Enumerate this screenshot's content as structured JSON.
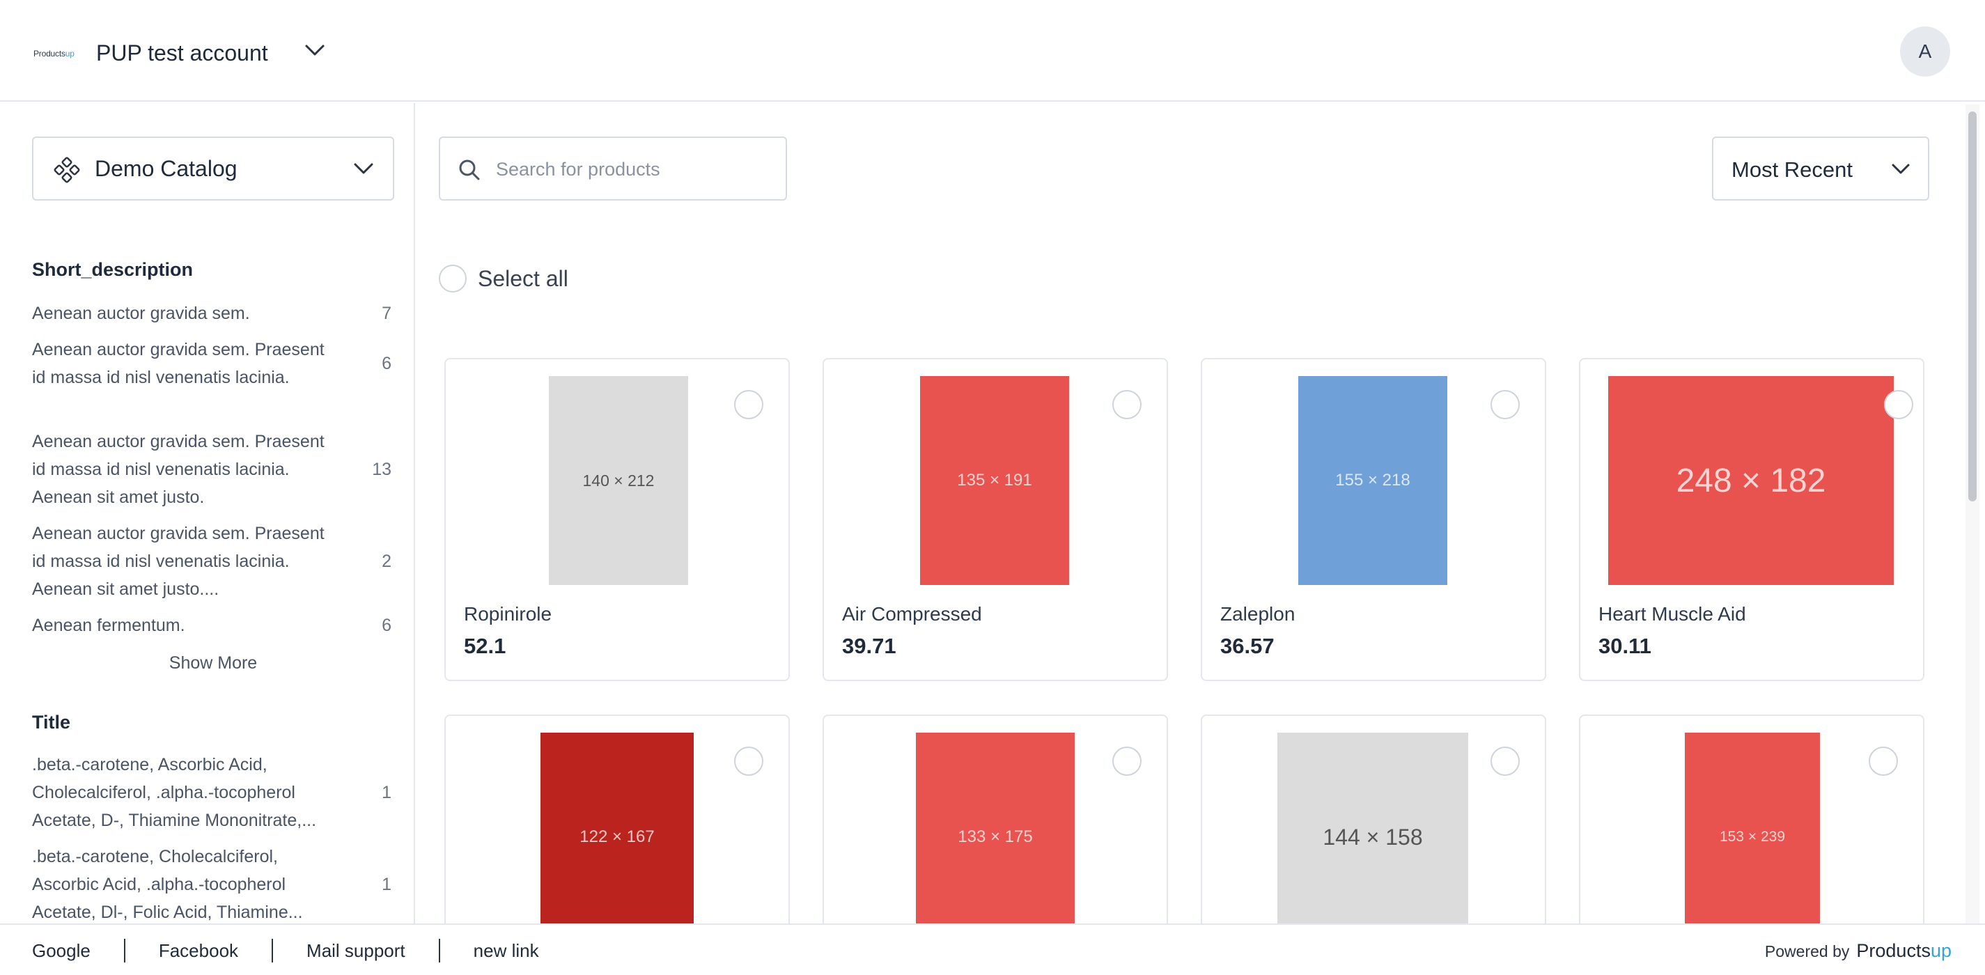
{
  "header": {
    "logo_text": "Products",
    "logo_accent": "up",
    "account_name": "PUP test account",
    "avatar_initial": "A"
  },
  "sidebar": {
    "catalog_label": "Demo Catalog",
    "facets": [
      {
        "title": "Short_description",
        "items": [
          {
            "text": "Aenean auctor gravida sem.",
            "count": "7"
          },
          {
            "text": "Aenean auctor gravida sem. Praesent id massa id nisl venenatis lacinia.",
            "count": "6"
          },
          {
            "text": "Aenean auctor gravida sem. Praesent id massa id nisl venenatis lacinia. Aenean sit amet justo.",
            "count": "13"
          },
          {
            "text": "Aenean auctor gravida sem. Praesent id massa id nisl venenatis lacinia. Aenean sit amet justo....",
            "count": "2"
          },
          {
            "text": "Aenean fermentum.",
            "count": "6"
          }
        ],
        "show_more": "Show More"
      },
      {
        "title": "Title",
        "items": [
          {
            "text": ".beta.-carotene, Ascorbic Acid, Cholecalciferol, .alpha.-tocopherol Acetate, D-, Thiamine Mononitrate,...",
            "count": "1"
          },
          {
            "text": ".beta.-carotene, Cholecalciferol, Ascorbic Acid, .alpha.-tocopherol Acetate, Dl-, Folic Acid, Thiamine...",
            "count": "1"
          }
        ]
      }
    ]
  },
  "toolbar": {
    "search_placeholder": "Search for products",
    "sort_label": "Most Recent",
    "select_all_label": "Select all"
  },
  "products": [
    {
      "name": "Ropinirole",
      "price": "52.1",
      "image_label": "140 × 212",
      "color": "#dcdcdc"
    },
    {
      "name": "Air Compressed",
      "price": "39.71",
      "image_label": "135 × 191",
      "color": "#e8534f"
    },
    {
      "name": "Zaleplon",
      "price": "36.57",
      "image_label": "155 × 218",
      "color": "#6fa1d8"
    },
    {
      "name": "Heart Muscle Aid",
      "price": "30.11",
      "image_label": "248 × 182",
      "color": "#e8534f"
    },
    {
      "name": "",
      "price": "",
      "image_label": "122 × 167",
      "color": "#bb241e"
    },
    {
      "name": "",
      "price": "",
      "image_label": "133 × 175",
      "color": "#e8534f"
    },
    {
      "name": "",
      "price": "",
      "image_label": "144 × 158",
      "color": "#dcdcdc"
    },
    {
      "name": "",
      "price": "",
      "image_label": "153 × 239",
      "color": "#e8534f"
    }
  ],
  "footer": {
    "links": [
      "Google",
      "Facebook",
      "Mail support",
      "new link"
    ],
    "powered_by": "Powered by",
    "brand": "Products",
    "brand_accent": "up"
  }
}
